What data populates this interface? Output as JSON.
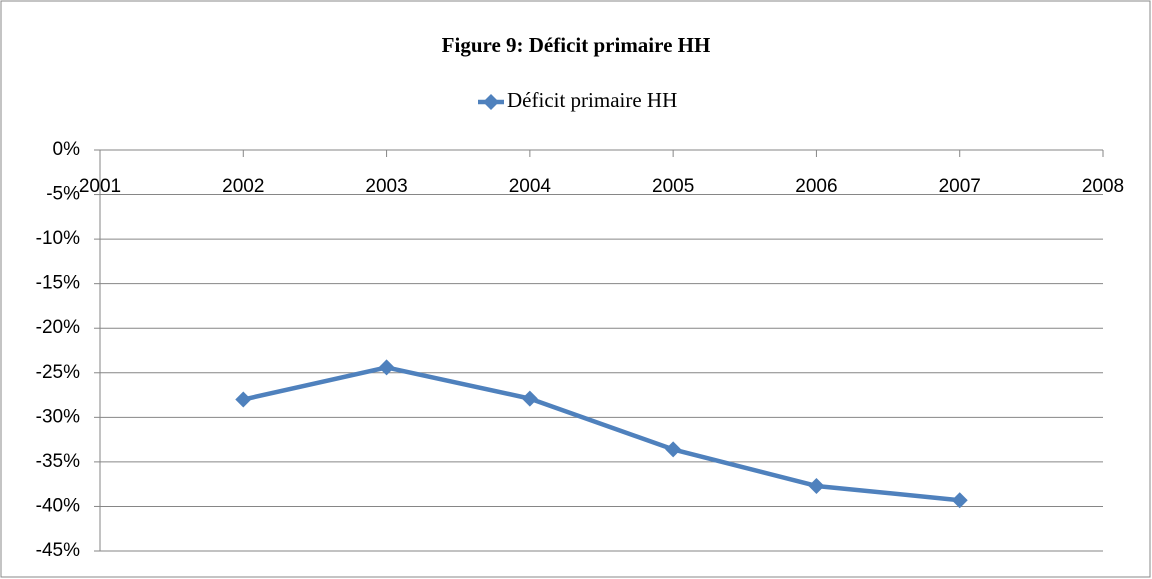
{
  "chart_data": {
    "type": "line",
    "title": "Figure 9: Déficit primaire HH",
    "x": [
      2002,
      2003,
      2004,
      2005,
      2006,
      2007
    ],
    "series": [
      {
        "name": "Déficit primaire HH",
        "color": "#4f81bd",
        "values": [
          -28,
          -24.4,
          -27.9,
          -33.6,
          -37.7,
          -39.3
        ]
      }
    ],
    "xlim": [
      2001,
      2008
    ],
    "xticks": [
      2001,
      2002,
      2003,
      2004,
      2005,
      2006,
      2007,
      2008
    ],
    "ylim": [
      -45,
      0
    ],
    "yticks": [
      {
        "value": 0,
        "label": "0%"
      },
      {
        "value": -5,
        "label": "-5%"
      },
      {
        "value": -10,
        "label": "-10%"
      },
      {
        "value": -15,
        "label": "-15%"
      },
      {
        "value": -20,
        "label": "-20%"
      },
      {
        "value": -25,
        "label": "-25%"
      },
      {
        "value": -30,
        "label": "-30%"
      },
      {
        "value": -35,
        "label": "-35%"
      },
      {
        "value": -40,
        "label": "-40%"
      },
      {
        "value": -45,
        "label": "-45%"
      }
    ],
    "grid": true,
    "legend": "top"
  }
}
